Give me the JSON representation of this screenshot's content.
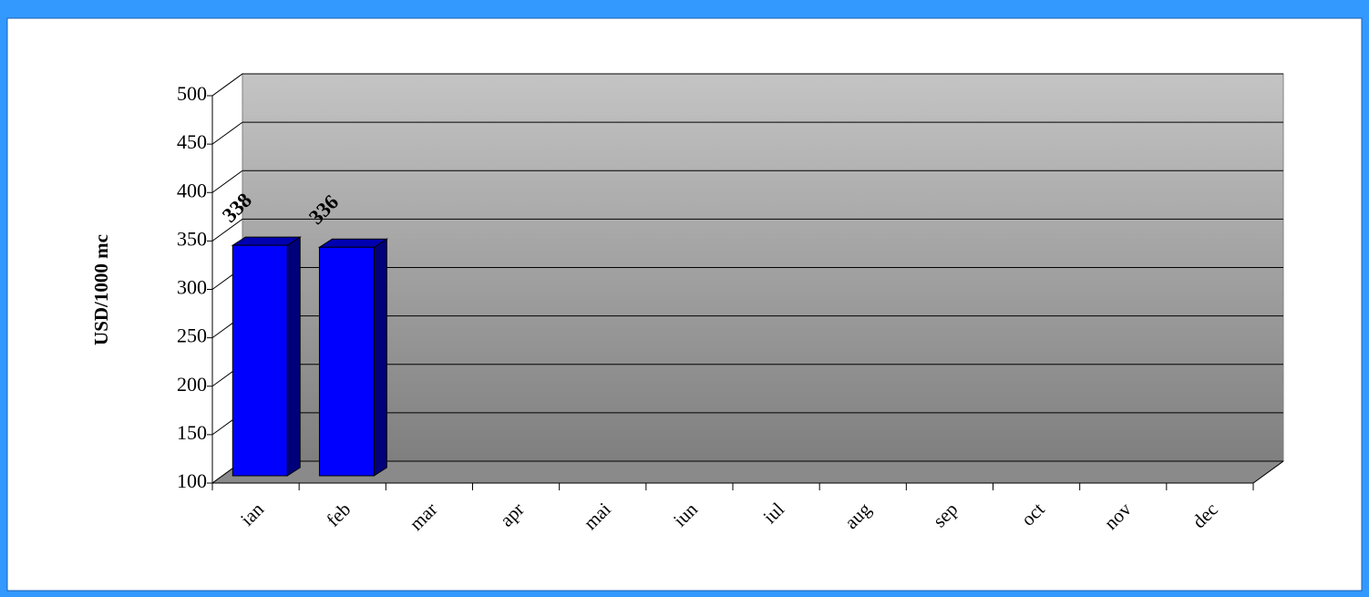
{
  "chart_data": {
    "type": "bar3d",
    "y_label": "USD/1000 mc",
    "categories": [
      "ian",
      "feb",
      "mar",
      "apr",
      "mai",
      "iun",
      "iul",
      "aug",
      "sep",
      "oct",
      "nov",
      "dec"
    ],
    "values": [
      338,
      336,
      null,
      null,
      null,
      null,
      null,
      null,
      null,
      null,
      null,
      null
    ],
    "color": "#0000ff",
    "ylim": [
      100,
      500
    ],
    "yticks": [
      100,
      150,
      200,
      250,
      300,
      350,
      400,
      450,
      500
    ],
    "grid": true
  }
}
